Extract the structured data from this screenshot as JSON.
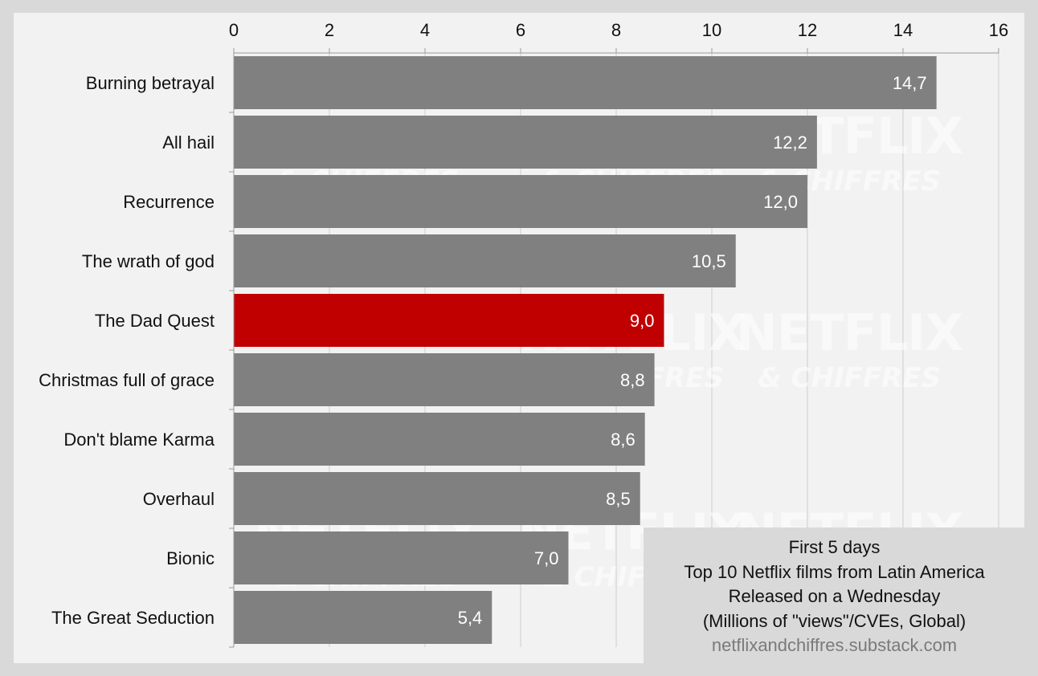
{
  "chart_data": {
    "type": "bar",
    "orientation": "horizontal",
    "categories": [
      "Burning betrayal",
      "All hail",
      "Recurrence",
      "The wrath of god",
      "The Dad Quest",
      "Christmas full of grace",
      "Don't blame Karma",
      "Overhaul",
      "Bionic",
      "The Great Seduction"
    ],
    "values": [
      14.7,
      12.2,
      12.0,
      10.5,
      9.0,
      8.8,
      8.6,
      8.5,
      7.0,
      5.4
    ],
    "value_labels": [
      "14,7",
      "12,2",
      "12,0",
      "10,5",
      "9,0",
      "8,8",
      "8,6",
      "8,5",
      "7,0",
      "5,4"
    ],
    "highlight_index": 4,
    "colors": {
      "default": "#808080",
      "highlight": "#c00000"
    },
    "xlim": [
      0,
      16
    ],
    "xticks": [
      0,
      2,
      4,
      6,
      8,
      10,
      12,
      14,
      16
    ],
    "x_axis_position": "top",
    "grid": true
  },
  "legend": {
    "line1": "First 5 days",
    "line2": "Top 10 Netflix films from Latin America",
    "line3": "Released on a Wednesday",
    "line4": "(Millions of \"views\"/CVEs, Global)",
    "source": "netflixandchiffres.substack.com"
  },
  "watermark": {
    "big": "NETFLIX",
    "small": "& CHIFFRES"
  }
}
